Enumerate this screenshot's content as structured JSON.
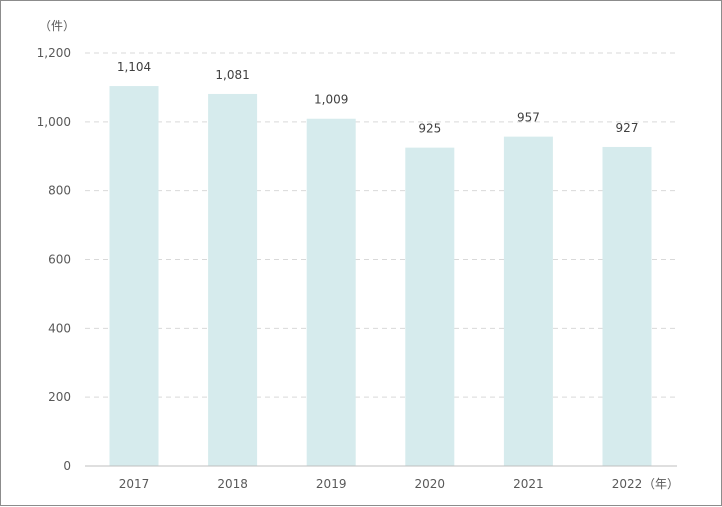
{
  "chart_data": {
    "type": "bar",
    "categories": [
      "2017",
      "2018",
      "2019",
      "2020",
      "2021",
      "2022"
    ],
    "values": [
      1104,
      1081,
      1009,
      925,
      957,
      927
    ],
    "data_labels": [
      "1,104",
      "1,081",
      "1,009",
      "925",
      "957",
      "927"
    ],
    "y_unit": "（件）",
    "x_unit": "（年）",
    "yticks": [
      0,
      200,
      400,
      600,
      800,
      1000,
      1200
    ],
    "ytick_labels": [
      "0",
      "200",
      "400",
      "600",
      "800",
      "1,000",
      "1,200"
    ],
    "ylim": [
      0,
      1200
    ],
    "grid": true,
    "grid_style": "dashed",
    "colors": {
      "bar": "#d6ebed",
      "grid": "#d9d9d9",
      "axis": "#bfbfbf"
    }
  }
}
